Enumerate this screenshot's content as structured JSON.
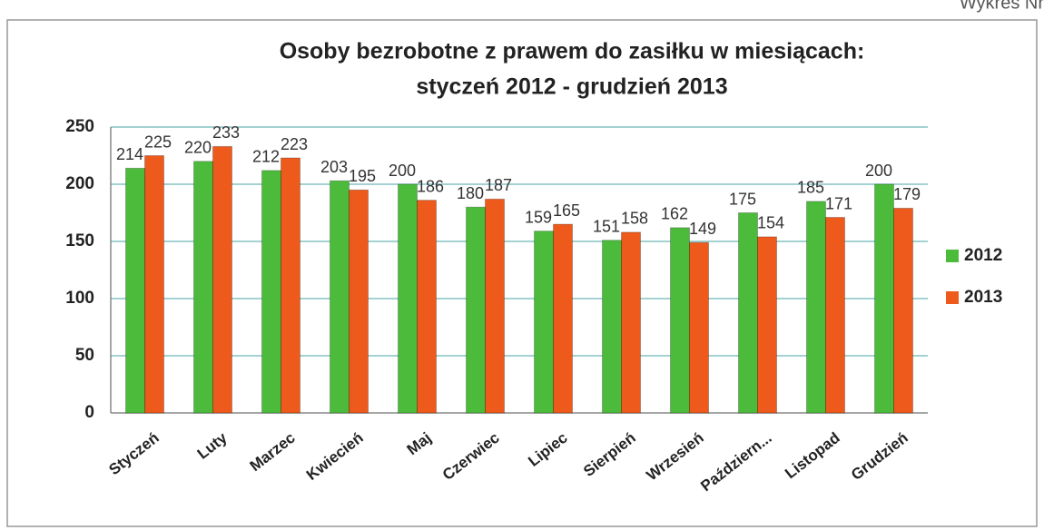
{
  "header": {
    "text": "Wykres Nr"
  },
  "chart_data": {
    "type": "bar",
    "title": [
      "Osoby bezrobotne z prawem do zasiłku w miesiącach:",
      "styczeń 2012 - grudzień 2013"
    ],
    "categories": [
      "Styczeń",
      "Luty",
      "Marzec",
      "Kwiecień",
      "Maj",
      "Czerwiec",
      "Lipiec",
      "Sierpień",
      "Wrzesień",
      "Październ...",
      "Listopad",
      "Grudzień"
    ],
    "series": [
      {
        "name": "2012",
        "color": "#4cbb3c",
        "values": [
          214,
          220,
          212,
          203,
          200,
          180,
          159,
          151,
          162,
          175,
          185,
          200
        ]
      },
      {
        "name": "2013",
        "color": "#ee5a1c",
        "values": [
          225,
          233,
          223,
          195,
          186,
          187,
          165,
          158,
          149,
          154,
          171,
          179
        ]
      }
    ],
    "ylim": [
      0,
      250
    ],
    "yticks": [
      0,
      50,
      100,
      150,
      200,
      250
    ],
    "grid": true,
    "legend": "right"
  }
}
